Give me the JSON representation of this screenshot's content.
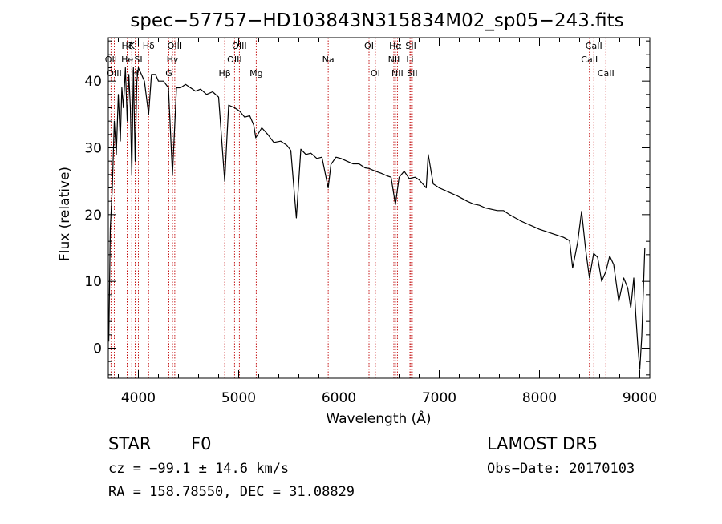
{
  "chart_data": {
    "type": "line",
    "title": "spec−57757−HD103843N315834M02_sp05−243.fits",
    "xlabel": "Wavelength (Å)",
    "ylabel": "Flux (relative)",
    "xlim": [
      3700,
      9100
    ],
    "ylim": [
      -4.5,
      46.5
    ],
    "x_ticks": [
      4000,
      5000,
      6000,
      7000,
      8000,
      9000
    ],
    "y_ticks": [
      0,
      10,
      20,
      30,
      40
    ],
    "grid": false,
    "line_color": "#000000",
    "marker_color": "#c00000",
    "spectrum": {
      "x": [
        3705,
        3720,
        3740,
        3760,
        3780,
        3800,
        3820,
        3835,
        3850,
        3870,
        3889,
        3905,
        3920,
        3934,
        3950,
        3968,
        3985,
        4000,
        4030,
        4060,
        4102,
        4130,
        4170,
        4200,
        4250,
        4300,
        4340,
        4380,
        4420,
        4470,
        4520,
        4570,
        4620,
        4680,
        4740,
        4800,
        4861,
        4900,
        4960,
        5010,
        5060,
        5110,
        5150,
        5170,
        5230,
        5290,
        5350,
        5420,
        5480,
        5520,
        5575,
        5620,
        5670,
        5720,
        5780,
        5830,
        5893,
        5920,
        5970,
        6020,
        6080,
        6140,
        6200,
        6260,
        6300,
        6363,
        6420,
        6480,
        6520,
        6563,
        6600,
        6650,
        6700,
        6760,
        6800,
        6870,
        6890,
        6940,
        7000,
        7060,
        7120,
        7180,
        7230,
        7280,
        7340,
        7400,
        7460,
        7520,
        7580,
        7640,
        7700,
        7760,
        7820,
        7880,
        7940,
        8000,
        8060,
        8120,
        8180,
        8240,
        8300,
        8330,
        8380,
        8420,
        8460,
        8498,
        8540,
        8580,
        8620,
        8662,
        8700,
        8740,
        8790,
        8840,
        8880,
        8910,
        8940,
        8960,
        8980,
        9000,
        9020,
        9050
      ],
      "y": [
        1,
        18,
        24,
        34,
        29,
        38,
        31,
        39,
        36,
        42,
        34,
        41,
        36,
        26,
        42,
        28,
        40,
        42,
        41,
        40,
        35,
        41,
        41,
        40,
        40,
        39,
        26,
        39,
        39,
        39.5,
        39,
        38.5,
        38.8,
        38,
        38.4,
        37.6,
        25,
        36.4,
        36,
        35.5,
        34.6,
        34.8,
        33.4,
        31.5,
        33,
        32,
        30.8,
        31,
        30.4,
        29.6,
        19.5,
        29.8,
        29,
        29.2,
        28.4,
        28.6,
        24,
        27.5,
        28.6,
        28.4,
        28,
        27.6,
        27.6,
        27,
        26.9,
        26.5,
        26.2,
        25.8,
        25.6,
        21.5,
        25.6,
        26.5,
        25.4,
        25.6,
        25.2,
        24,
        29,
        24.6,
        24,
        23.6,
        23.2,
        22.8,
        22.4,
        22,
        21.6,
        21.4,
        21,
        20.8,
        20.6,
        20.6,
        20,
        19.5,
        19,
        18.6,
        18.2,
        17.8,
        17.5,
        17.2,
        16.9,
        16.6,
        16.1,
        12,
        15.8,
        20.5,
        14.8,
        10.5,
        14.2,
        13.6,
        10,
        11.5,
        13.8,
        12.5,
        7,
        10.5,
        9,
        6,
        10.5,
        5,
        0.5,
        -3.2,
        1.8,
        15
      ]
    },
    "annotations": [
      {
        "label": "Hζ",
        "wavelength": 3889
      },
      {
        "label": "K",
        "wavelength": 3934
      },
      {
        "label": "Hδ",
        "wavelength": 4102
      },
      {
        "label": "OIII",
        "wavelength": 4363
      },
      {
        "label": "OIII",
        "wavelength": 5007
      },
      {
        "label": "OI",
        "wavelength": 6300
      },
      {
        "label": "Hα",
        "wavelength": 6563
      },
      {
        "label": "SII",
        "wavelength": 6717
      },
      {
        "label": "CaII",
        "wavelength": 8542
      },
      {
        "label": "OII",
        "wavelength": 3727
      },
      {
        "label": "He",
        "wavelength": 3889
      },
      {
        "label": "SI",
        "wavelength": 4000
      },
      {
        "label": "Hγ",
        "wavelength": 4340
      },
      {
        "label": "OIII",
        "wavelength": 4959
      },
      {
        "label": "Na",
        "wavelength": 5893
      },
      {
        "label": "NII",
        "wavelength": 6548
      },
      {
        "label": "Li",
        "wavelength": 6708
      },
      {
        "label": "CaII",
        "wavelength": 8498
      },
      {
        "label": "OIII",
        "wavelength": 3760
      },
      {
        "label": "H",
        "wavelength": 3968
      },
      {
        "label": "G",
        "wavelength": 4304
      },
      {
        "label": "Hβ",
        "wavelength": 4861
      },
      {
        "label": "Mg",
        "wavelength": 5175
      },
      {
        "label": "OI",
        "wavelength": 6363
      },
      {
        "label": "NII",
        "wavelength": 6583
      },
      {
        "label": "SII",
        "wavelength": 6731
      },
      {
        "label": "CaII",
        "wavelength": 8662
      }
    ]
  },
  "info": {
    "class": "STAR",
    "subclass": "F0",
    "survey": "LAMOST DR5",
    "velocity": "cz = −99.1 ± 14.6 km/s",
    "obs_date": "Obs−Date: 20170103",
    "coords": "RA = 158.78550, DEC =  31.08829"
  }
}
